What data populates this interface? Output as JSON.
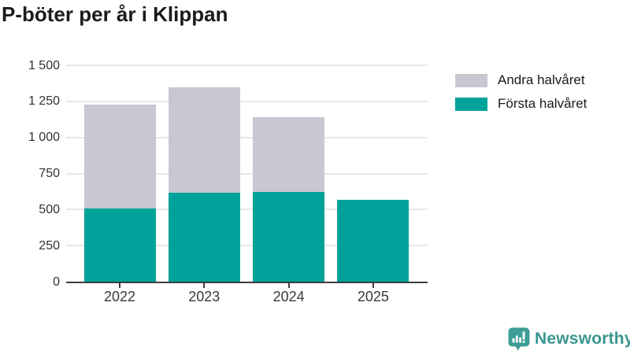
{
  "title": "P-böter per år i Klippan",
  "legend": {
    "items": [
      {
        "label": "Andra halvåret",
        "color": "#c9c7d1"
      },
      {
        "label": "Första halvåret",
        "color": "#00a29a"
      }
    ]
  },
  "chart_data": {
    "type": "bar",
    "stacked": true,
    "title": "P-böter per år i Klippan",
    "categories": [
      "2022",
      "2023",
      "2024",
      "2025"
    ],
    "series": [
      {
        "name": "Första halvåret",
        "color": "#00a29a",
        "values": [
          505,
          615,
          620,
          570
        ]
      },
      {
        "name": "Andra halvåret",
        "color": "#c9c7d1",
        "values": [
          725,
          735,
          520,
          0
        ]
      }
    ],
    "totals": [
      1230,
      1350,
      1140,
      570
    ],
    "xlabel": "",
    "ylabel": "",
    "ylim": [
      0,
      1500
    ],
    "yticks": [
      0,
      250,
      500,
      750,
      1000,
      1250,
      1500
    ],
    "ytick_labels": [
      "0",
      "250",
      "500",
      "750",
      "1 000",
      "1 250",
      "1 500"
    ],
    "grid": "horizontal",
    "legend_position": "top-right"
  },
  "branding": {
    "logo_text": "Newsworthy",
    "logo_text_color": "#39968f",
    "logo_icon_color": "#3e9e96",
    "logo_icon": "bar-chart-speech-bubble"
  }
}
